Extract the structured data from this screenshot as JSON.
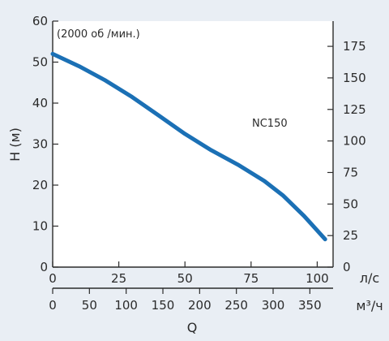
{
  "chart_data": {
    "type": "line",
    "note": "(2000 об /мин.)",
    "series": [
      {
        "name": "NC150",
        "color": "#1b70b5",
        "x": [
          0,
          10,
          20,
          30,
          40,
          50,
          60,
          70,
          80,
          87,
          95,
          103
        ],
        "y": [
          52,
          49,
          45.5,
          41.5,
          37,
          32.5,
          28.5,
          25,
          21,
          17.5,
          12.5,
          6.8
        ]
      }
    ],
    "y_left": {
      "label": "H (м)",
      "ticks": [
        0,
        10,
        20,
        30,
        40,
        50,
        60
      ],
      "range": [
        0,
        60
      ]
    },
    "y_right": {
      "ticks": [
        0,
        25,
        50,
        75,
        100,
        125,
        150,
        175
      ],
      "range": [
        0,
        195
      ]
    },
    "x_top": {
      "unit": "л/с",
      "ticks": [
        0,
        25,
        50,
        75,
        100
      ],
      "range": [
        0,
        106
      ]
    },
    "x_bottom": {
      "unit": "м³/ч",
      "ticks": [
        0,
        50,
        100,
        150,
        200,
        250,
        300,
        350
      ],
      "range": [
        0,
        381.6
      ]
    },
    "x_label": "Q",
    "colors": {
      "plot_bg": "#ffffff",
      "page_bg": "#e9eef4",
      "axis": "#2b2b2b"
    }
  }
}
